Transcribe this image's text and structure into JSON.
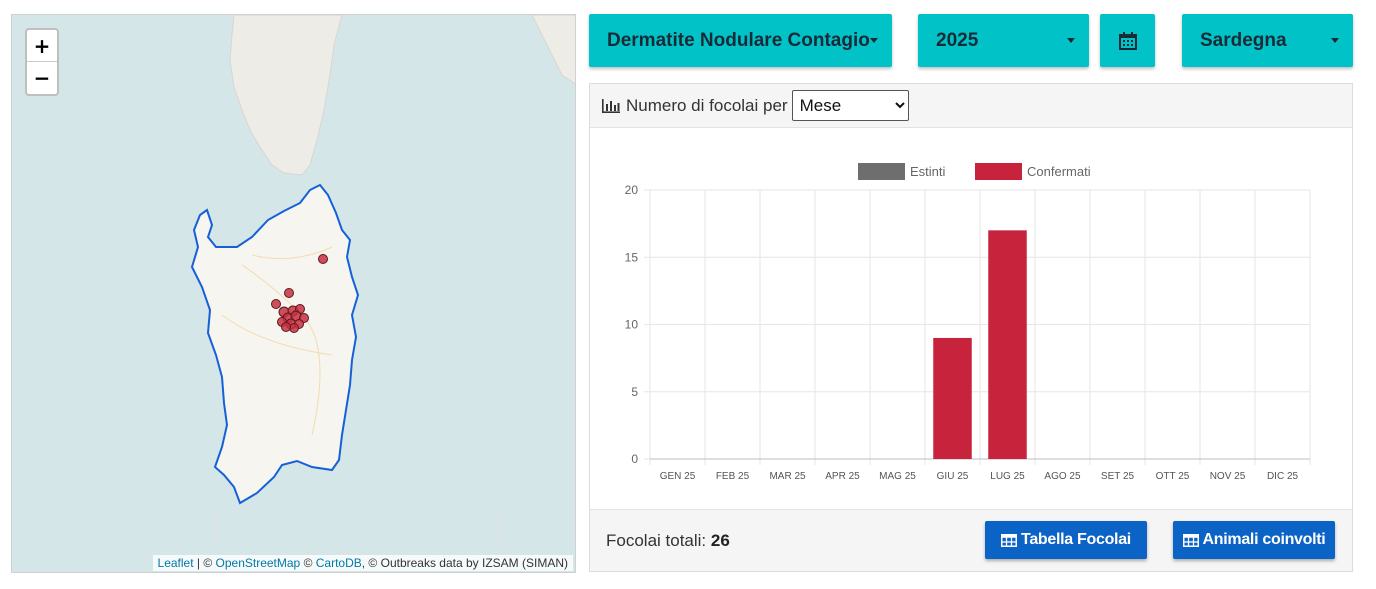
{
  "map": {
    "zoom_in_label": "+",
    "zoom_out_label": "−",
    "attribution": {
      "leaflet": "Leaflet",
      "sep1": " | © ",
      "osm": "OpenStreetMap",
      "sep2": " © ",
      "carto": "CartoDB",
      "rest": ", © Outbreaks data by IZSAM (SIMAN)"
    },
    "colors": {
      "sea": "#d4e6e8",
      "land": "#f7f5ef",
      "border": "#1560d9",
      "marker": "#c8303f"
    }
  },
  "controls": {
    "disease": "Dermatite Nodulare Contagio",
    "year": "2025",
    "calendar_icon": "calendar-icon",
    "region": "Sardegna",
    "accent": "#00c2c7"
  },
  "panel": {
    "header_label": "Numero di focolai per",
    "period_select": {
      "selected": "Mese"
    },
    "footer": {
      "total_label": "Focolai totali:",
      "total_value": "26",
      "btn_table": "Tabella Focolai",
      "btn_animals": "Animali coinvolti"
    }
  },
  "chart_data": {
    "type": "bar",
    "categories": [
      "GEN 25",
      "FEB 25",
      "MAR 25",
      "APR 25",
      "MAG 25",
      "GIU 25",
      "LUG 25",
      "AGO 25",
      "SET 25",
      "OTT 25",
      "NOV 25",
      "DIC 25"
    ],
    "series": [
      {
        "name": "Estinti",
        "color": "#6e6e6e",
        "values": [
          0,
          0,
          0,
          0,
          0,
          0,
          0,
          0,
          0,
          0,
          0,
          0
        ]
      },
      {
        "name": "Confermati",
        "color": "#c8233c",
        "values": [
          0,
          0,
          0,
          0,
          0,
          9,
          17,
          0,
          0,
          0,
          0,
          0
        ]
      }
    ],
    "yticks": [
      "0",
      "5",
      "10",
      "15",
      "20"
    ],
    "ylim": [
      0,
      20
    ],
    "grid": true,
    "legend": "top-center"
  }
}
